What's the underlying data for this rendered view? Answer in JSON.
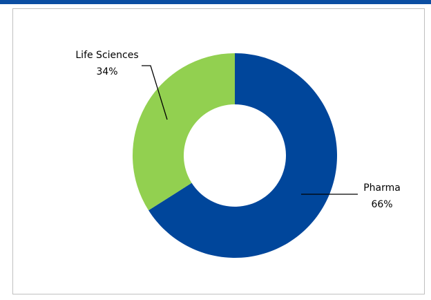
{
  "chart_data": {
    "type": "pie",
    "subtype": "donut",
    "title": "",
    "slices": [
      {
        "name": "Pharma",
        "value": 66,
        "label": "66%",
        "color": "#00469b"
      },
      {
        "name": "Life Sciences",
        "value": 34,
        "label": "34%",
        "color": "#92d050"
      }
    ],
    "start_angle_deg": 0,
    "direction": "clockwise",
    "legend": "none"
  },
  "colors": {
    "top_bar": "#0b4ea2",
    "frame_border": "#bfbfbf"
  }
}
